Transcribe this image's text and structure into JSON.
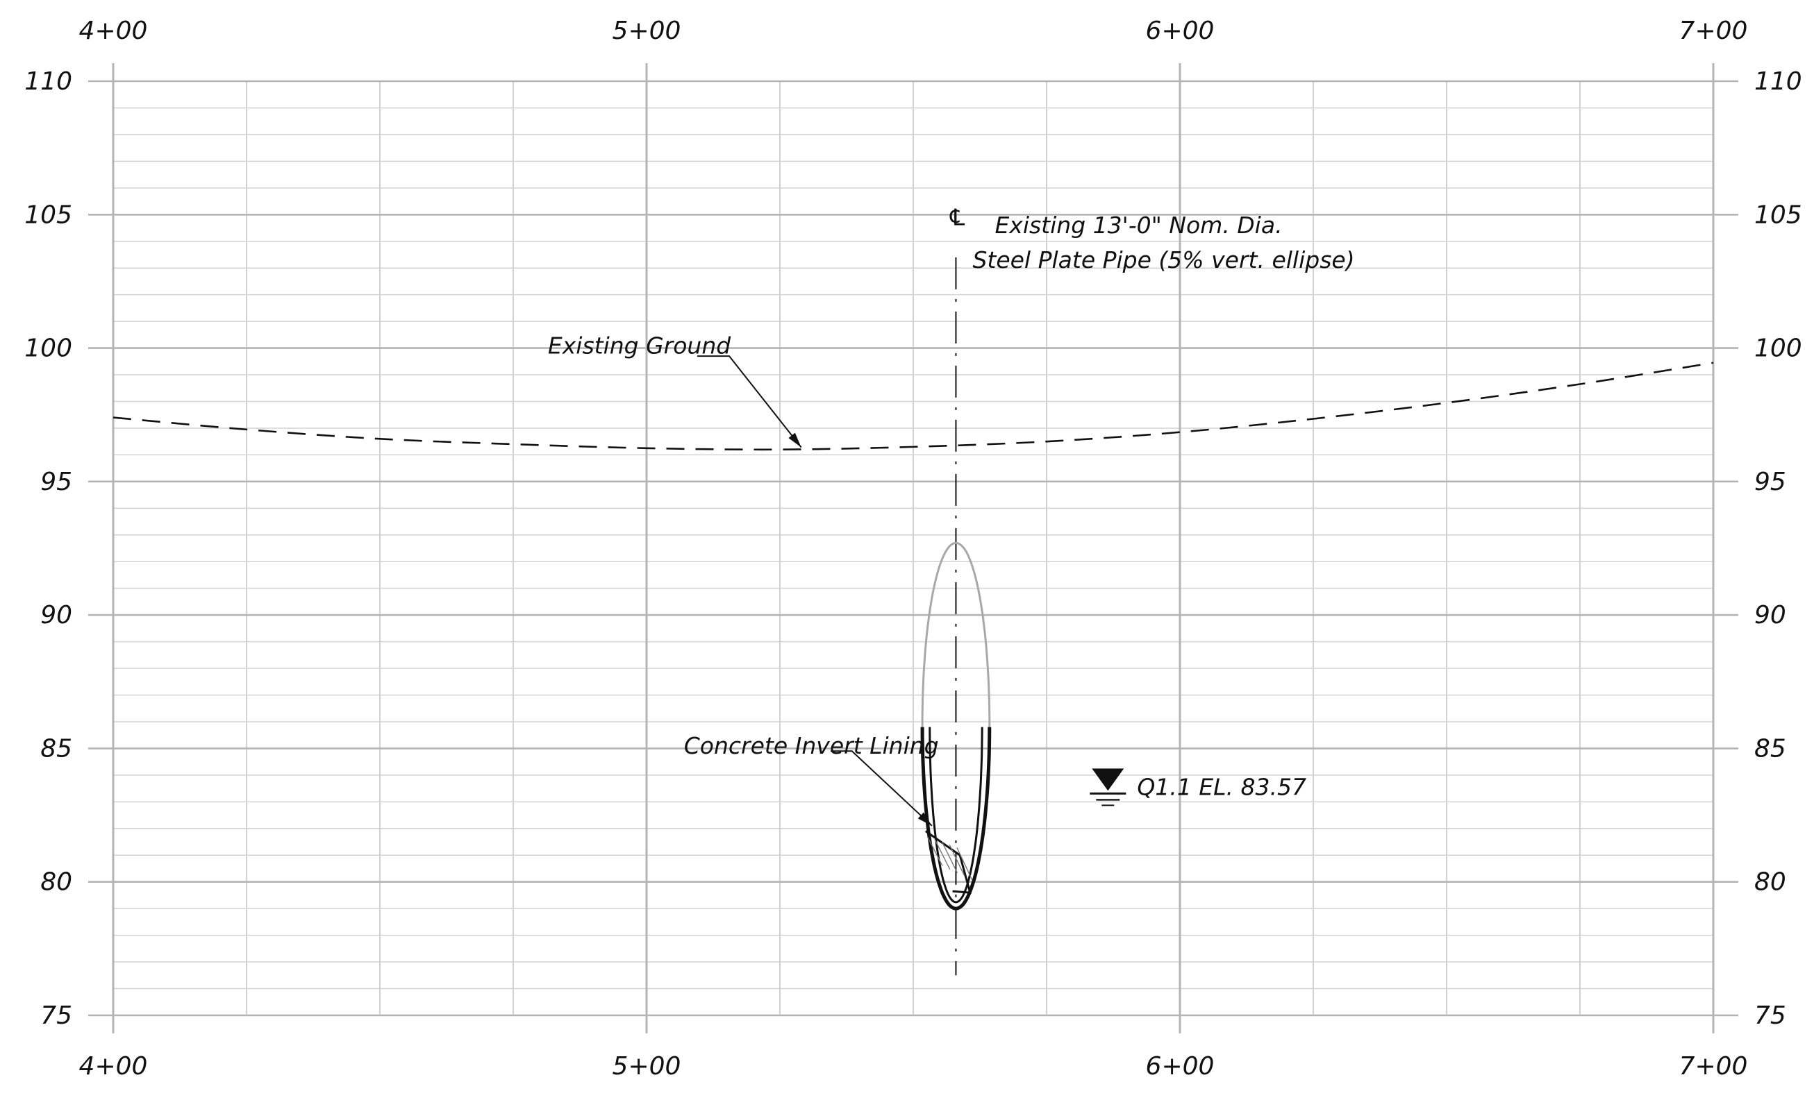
{
  "profile": {
    "station_labels": [
      "4+00",
      "5+00",
      "6+00",
      "7+00"
    ],
    "station_values": [
      400,
      500,
      600,
      700
    ],
    "station_range": [
      400,
      700
    ],
    "elevation_labels": [
      "110",
      "105",
      "100",
      "95",
      "90",
      "85",
      "80",
      "75"
    ],
    "elevation_values": [
      110,
      105,
      100,
      95,
      90,
      85,
      80,
      75
    ],
    "elevation_range": [
      75,
      110
    ],
    "minor_grid_station_step": 25,
    "minor_grid_elevation_step": 1,
    "colors": {
      "grid_major": "#b4b4b4",
      "grid_minor": "#d2d2d2",
      "ink": "#111111",
      "pipe_upper": "#a8a8a8"
    }
  },
  "existing_ground": {
    "label": "Existing Ground",
    "points": [
      [
        400,
        97.4
      ],
      [
        425,
        96.95
      ],
      [
        450,
        96.6
      ],
      [
        475,
        96.4
      ],
      [
        500,
        96.25
      ],
      [
        525,
        96.2
      ],
      [
        550,
        96.3
      ],
      [
        575,
        96.5
      ],
      [
        600,
        96.85
      ],
      [
        625,
        97.35
      ],
      [
        650,
        97.95
      ],
      [
        675,
        98.65
      ],
      [
        700,
        99.45
      ]
    ]
  },
  "pipe": {
    "centerline_symbol": "℄",
    "label_line1": "Existing 13'-0\" Nom. Dia.",
    "label_line2": "Steel Plate Pipe (5% vert. ellipse)",
    "centerline_station": 558,
    "crown_elevation": 92.7,
    "invert_elevation": 79,
    "half_span_stations": 6.3,
    "spring_line_elevation": 85.8
  },
  "lining": {
    "label": "Concrete Invert Lining",
    "top_elevation": 85.8
  },
  "water": {
    "label": "Q1.1 EL. 83.57",
    "elevation": 83.57,
    "symbol_station": 586.5
  }
}
